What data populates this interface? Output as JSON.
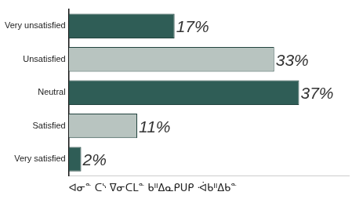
{
  "chart_data": {
    "type": "bar",
    "orientation": "horizontal",
    "categories": [
      "Very unsatisfied",
      "Unsatisfied",
      "Neutral",
      "Satisfied",
      "Very satisfied"
    ],
    "values": [
      17,
      33,
      37,
      11,
      2
    ],
    "value_labels": [
      "17%",
      "33%",
      "37%",
      "11%",
      "2%"
    ],
    "colors": [
      "#2f5d56",
      "#b8c4c0",
      "#2f5d56",
      "#b8c4c0",
      "#2f5d56"
    ],
    "xlabel": "ᐊᓂᓐ ᑕᔅ ᐁᓂᑕᒪᓐ ᑲᐦᐃᓇᑭᑌᑭ ᐙᑲᐦᐃᑲᓐ",
    "xlim": [
      0,
      45
    ],
    "xticks": [],
    "data_labels": true,
    "grid": false,
    "tick_labels": "y"
  }
}
